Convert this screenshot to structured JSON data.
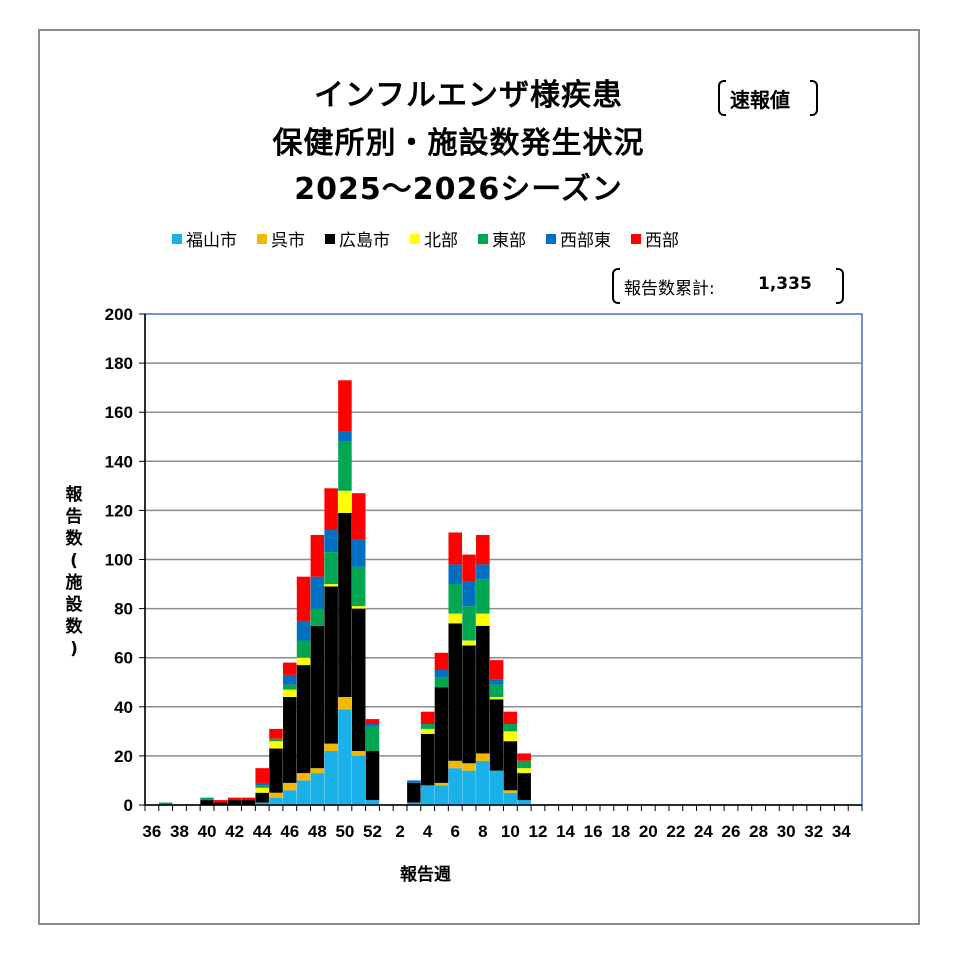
{
  "title": {
    "line1": "インフルエンザ様疾患",
    "line2": "保健所別・施設数発生状況",
    "line3": "2025～2026シーズン",
    "badge": "速報値"
  },
  "total": {
    "label": "報告数累計:",
    "value": "1,335"
  },
  "chart_data": {
    "type": "bar",
    "stacked": true,
    "xlabel": "報告週",
    "ylabel": "報告数(施設数)",
    "ylim": [
      0,
      200
    ],
    "yticks": [
      0,
      20,
      40,
      60,
      80,
      100,
      120,
      140,
      160,
      180,
      200
    ],
    "grid": true,
    "legend_position": "top",
    "categories": [
      36,
      37,
      38,
      39,
      40,
      41,
      42,
      43,
      44,
      45,
      46,
      47,
      48,
      49,
      50,
      51,
      52,
      1,
      2,
      3,
      4,
      5,
      6,
      7,
      8,
      9,
      10,
      11,
      12,
      13,
      14,
      15,
      16,
      17,
      18,
      19,
      20,
      21,
      22,
      23,
      24,
      25,
      26,
      27,
      28,
      29,
      30,
      31,
      32,
      33,
      34,
      35
    ],
    "tick_labels": [
      "36",
      "",
      "38",
      "",
      "40",
      "",
      "42",
      "",
      "44",
      "",
      "46",
      "",
      "48",
      "",
      "50",
      "",
      "52",
      "",
      "2",
      "",
      "4",
      "",
      "6",
      "",
      "8",
      "",
      "10",
      "",
      "12",
      "",
      "14",
      "",
      "16",
      "",
      "18",
      "",
      "20",
      "",
      "22",
      "",
      "24",
      "",
      "26",
      "",
      "28",
      "",
      "30",
      "",
      "32",
      "",
      "34",
      ""
    ],
    "series": [
      {
        "name": "福山市",
        "color": "#1ab0e8",
        "values": [
          0,
          0,
          0,
          0,
          0,
          0,
          0,
          0,
          1,
          3,
          6,
          10,
          13,
          22,
          39,
          20,
          2,
          0,
          0,
          1,
          8,
          8,
          15,
          14,
          18,
          14,
          5,
          2,
          0,
          0,
          0,
          0,
          0,
          0,
          0,
          0,
          0,
          0,
          0,
          0,
          0,
          0,
          0,
          0,
          0,
          0,
          0,
          0,
          0,
          0,
          0,
          0
        ]
      },
      {
        "name": "呉市",
        "color": "#f5b800",
        "values": [
          0,
          0,
          0,
          0,
          0,
          0,
          0,
          0,
          0,
          2,
          3,
          3,
          2,
          3,
          5,
          2,
          0,
          0,
          0,
          0,
          0,
          1,
          3,
          3,
          3,
          0,
          1,
          0,
          0,
          0,
          0,
          0,
          0,
          0,
          0,
          0,
          0,
          0,
          0,
          0,
          0,
          0,
          0,
          0,
          0,
          0,
          0,
          0,
          0,
          0,
          0,
          0
        ]
      },
      {
        "name": "広島市",
        "color": "#000000",
        "values": [
          0,
          0,
          0,
          0,
          2,
          1,
          2,
          2,
          4,
          18,
          35,
          44,
          58,
          64,
          75,
          58,
          20,
          0,
          0,
          8,
          21,
          39,
          56,
          48,
          52,
          29,
          20,
          11,
          0,
          0,
          0,
          0,
          0,
          0,
          0,
          0,
          0,
          0,
          0,
          0,
          0,
          0,
          0,
          0,
          0,
          0,
          0,
          0,
          0,
          0,
          0,
          0
        ]
      },
      {
        "name": "北部",
        "color": "#ffff00",
        "values": [
          0,
          0,
          0,
          0,
          0,
          0,
          0,
          0,
          2,
          3,
          3,
          3,
          0,
          1,
          9,
          1,
          0,
          0,
          0,
          0,
          2,
          0,
          4,
          2,
          5,
          1,
          4,
          2,
          0,
          0,
          0,
          0,
          0,
          0,
          0,
          0,
          0,
          0,
          0,
          0,
          0,
          0,
          0,
          0,
          0,
          0,
          0,
          0,
          0,
          0,
          0,
          0
        ]
      },
      {
        "name": "東部",
        "color": "#00a651",
        "values": [
          0,
          1,
          0,
          0,
          1,
          0,
          0,
          0,
          1,
          1,
          2,
          7,
          7,
          13,
          20,
          16,
          10,
          0,
          0,
          0,
          2,
          4,
          12,
          14,
          14,
          5,
          3,
          3,
          0,
          0,
          0,
          0,
          0,
          0,
          0,
          0,
          0,
          0,
          0,
          0,
          0,
          0,
          0,
          0,
          0,
          0,
          0,
          0,
          0,
          0,
          0,
          0
        ]
      },
      {
        "name": "西部東",
        "color": "#0070c0",
        "values": [
          0,
          0,
          0,
          0,
          0,
          0,
          0,
          0,
          1,
          0,
          4,
          8,
          13,
          9,
          4,
          11,
          1,
          0,
          0,
          1,
          0,
          3,
          8,
          10,
          6,
          2,
          0,
          0,
          0,
          0,
          0,
          0,
          0,
          0,
          0,
          0,
          0,
          0,
          0,
          0,
          0,
          0,
          0,
          0,
          0,
          0,
          0,
          0,
          0,
          0,
          0,
          0
        ]
      },
      {
        "name": "西部",
        "color": "#ff0000",
        "values": [
          0,
          0,
          0,
          0,
          0,
          1,
          1,
          1,
          6,
          4,
          5,
          18,
          17,
          17,
          21,
          19,
          2,
          0,
          0,
          0,
          5,
          7,
          13,
          11,
          12,
          8,
          5,
          3,
          0,
          0,
          0,
          0,
          0,
          0,
          0,
          0,
          0,
          0,
          0,
          0,
          0,
          0,
          0,
          0,
          0,
          0,
          0,
          0,
          0,
          0,
          0,
          0
        ]
      }
    ]
  }
}
